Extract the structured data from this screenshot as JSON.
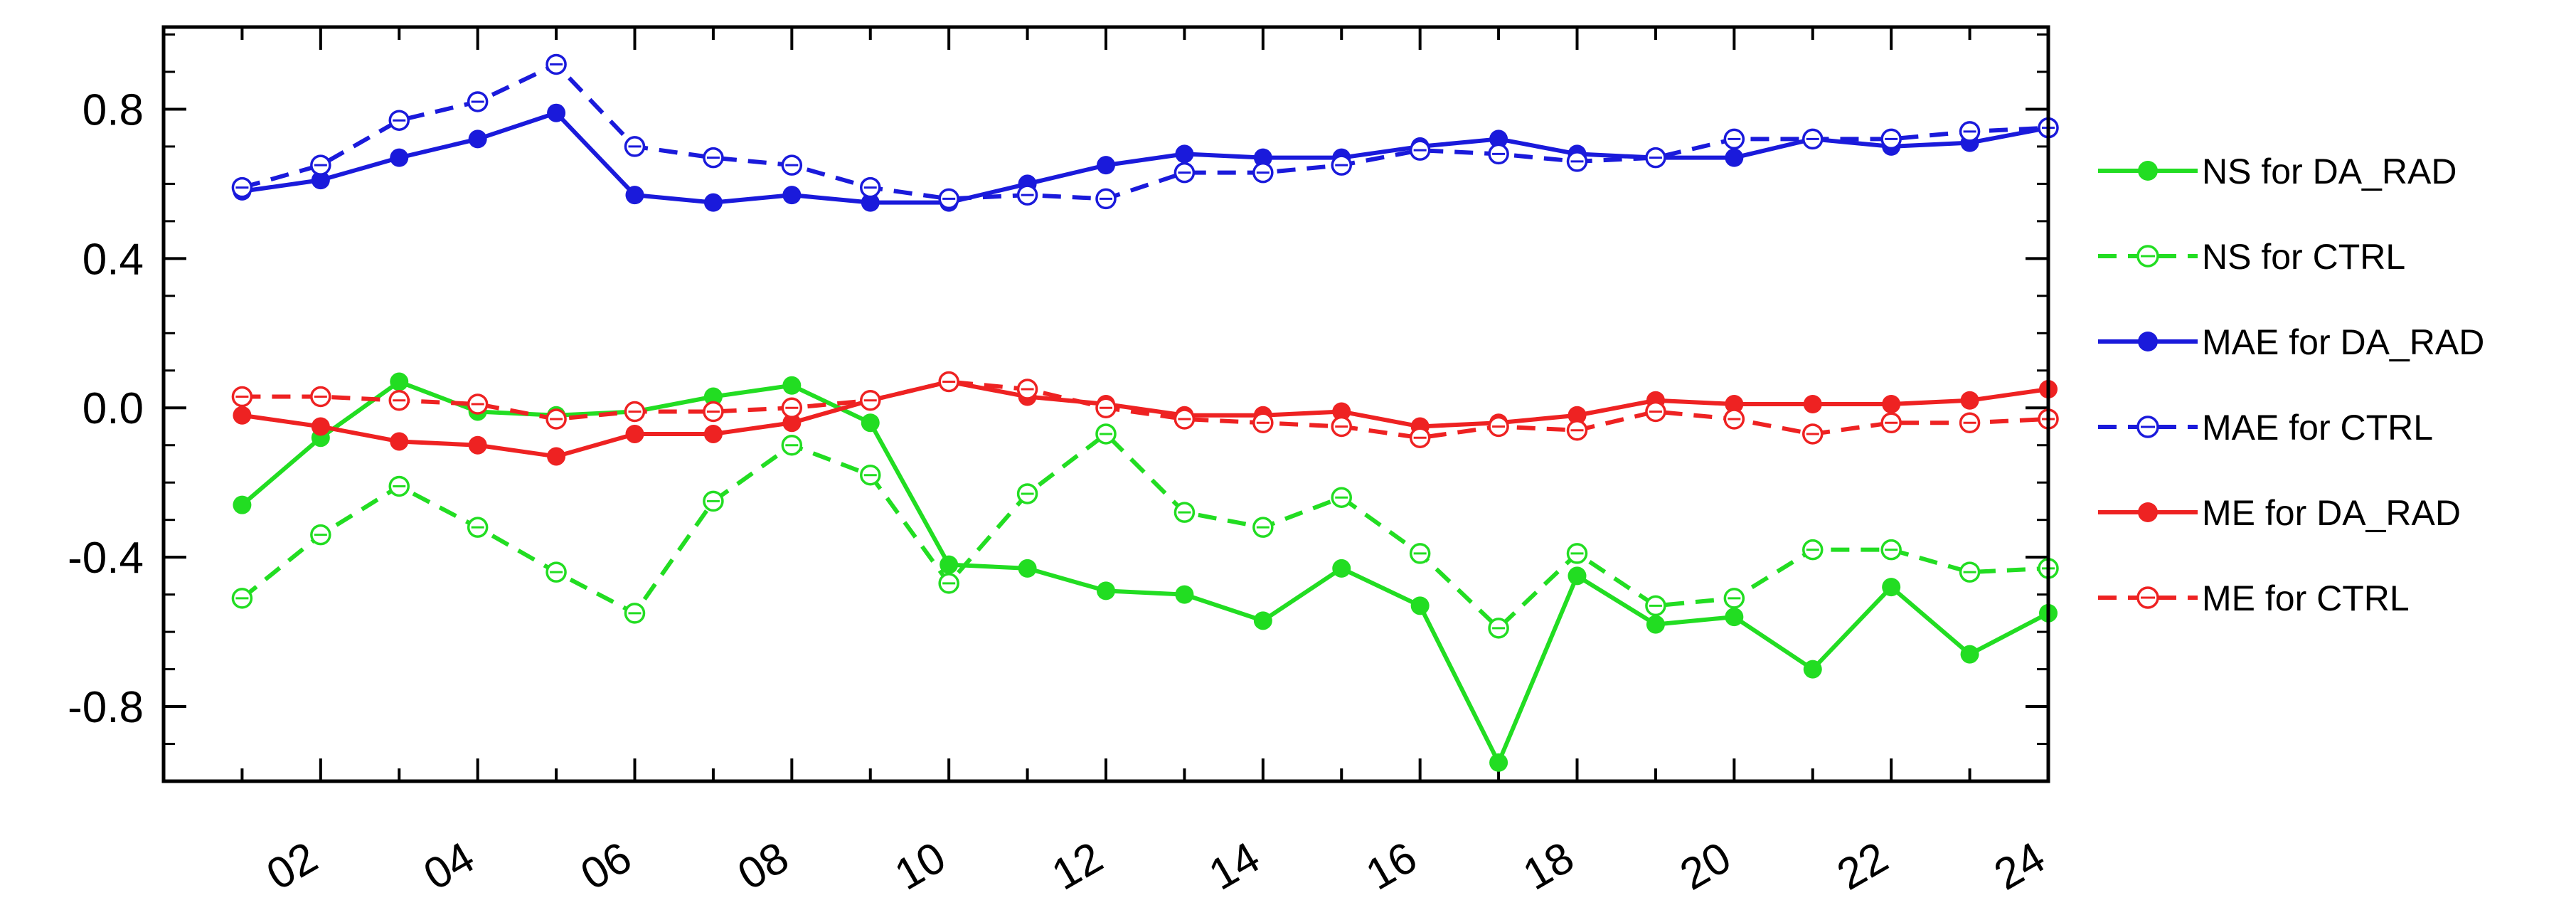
{
  "chart_data": {
    "type": "line",
    "title": "",
    "xlabel": "",
    "ylabel": "",
    "x": [
      1,
      2,
      3,
      4,
      5,
      6,
      7,
      8,
      9,
      10,
      11,
      12,
      13,
      14,
      15,
      16,
      17,
      18,
      19,
      20,
      21,
      22,
      23,
      24
    ],
    "x_tick_labels": [
      "02",
      "04",
      "06",
      "08",
      "10",
      "12",
      "14",
      "16",
      "18",
      "20",
      "22",
      "24"
    ],
    "x_tick_values": [
      2,
      4,
      6,
      8,
      10,
      12,
      14,
      16,
      18,
      20,
      22,
      24
    ],
    "xlim": [
      0,
      24
    ],
    "y_tick_labels": [
      "0.8",
      "0.4",
      "0.0",
      "-0.4",
      "-0.8"
    ],
    "y_tick_values": [
      0.8,
      0.4,
      0.0,
      -0.4,
      -0.8
    ],
    "ylim": [
      -1.0,
      1.02
    ],
    "grid": false,
    "legend_position": "right",
    "series": [
      {
        "name": "NS for DA_RAD",
        "color": "#22dd22",
        "style": "solid",
        "marker": "filled",
        "values": [
          -0.26,
          -0.08,
          0.07,
          -0.01,
          -0.02,
          -0.01,
          0.03,
          0.06,
          -0.04,
          -0.42,
          -0.43,
          -0.49,
          -0.5,
          -0.57,
          -0.43,
          -0.53,
          -0.95,
          -0.45,
          -0.58,
          -0.56,
          -0.7,
          -0.48,
          -0.66,
          -0.55
        ]
      },
      {
        "name": "NS for CTRL",
        "color": "#22dd22",
        "style": "dashed",
        "marker": "open",
        "values": [
          -0.51,
          -0.34,
          -0.21,
          -0.32,
          -0.44,
          -0.55,
          -0.25,
          -0.1,
          -0.18,
          -0.47,
          -0.23,
          -0.07,
          -0.28,
          -0.32,
          -0.24,
          -0.39,
          -0.59,
          -0.39,
          -0.53,
          -0.51,
          -0.38,
          -0.38,
          -0.44,
          -0.43
        ]
      },
      {
        "name": "MAE for DA_RAD",
        "color": "#1a1adb",
        "style": "solid",
        "marker": "filled",
        "values": [
          0.58,
          0.61,
          0.67,
          0.72,
          0.79,
          0.57,
          0.55,
          0.57,
          0.55,
          0.55,
          0.6,
          0.65,
          0.68,
          0.67,
          0.67,
          0.7,
          0.72,
          0.68,
          0.67,
          0.67,
          0.72,
          0.7,
          0.71,
          0.75
        ]
      },
      {
        "name": "MAE for CTRL",
        "color": "#1a1adb",
        "style": "dashed",
        "marker": "open",
        "values": [
          0.59,
          0.65,
          0.77,
          0.82,
          0.92,
          0.7,
          0.67,
          0.65,
          0.59,
          0.56,
          0.57,
          0.56,
          0.63,
          0.63,
          0.65,
          0.69,
          0.68,
          0.66,
          0.67,
          0.72,
          0.72,
          0.72,
          0.74,
          0.75
        ]
      },
      {
        "name": "ME for DA_RAD",
        "color": "#ee2222",
        "style": "solid",
        "marker": "filled",
        "values": [
          -0.02,
          -0.05,
          -0.09,
          -0.1,
          -0.13,
          -0.07,
          -0.07,
          -0.04,
          0.02,
          0.07,
          0.03,
          0.01,
          -0.02,
          -0.02,
          -0.01,
          -0.05,
          -0.04,
          -0.02,
          0.02,
          0.01,
          0.01,
          0.01,
          0.02,
          0.05
        ]
      },
      {
        "name": "ME for CTRL",
        "color": "#ee2222",
        "style": "dashed",
        "marker": "open",
        "values": [
          0.03,
          0.03,
          0.02,
          0.01,
          -0.03,
          -0.01,
          -0.01,
          0.0,
          0.02,
          0.07,
          0.05,
          0.0,
          -0.03,
          -0.04,
          -0.05,
          -0.08,
          -0.05,
          -0.06,
          -0.01,
          -0.03,
          -0.07,
          -0.04,
          -0.04,
          -0.03
        ]
      }
    ]
  }
}
